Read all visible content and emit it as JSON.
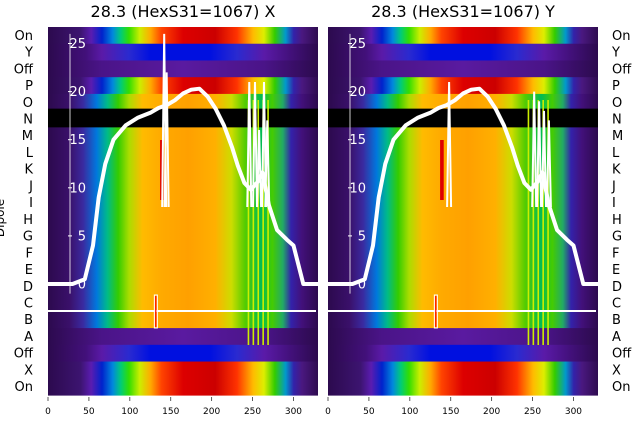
{
  "chart_data": [
    {
      "type": "heatmap",
      "title": "28.3 (HexS31=1067) X",
      "ylabel": "Dipole",
      "y_rows_top_to_bottom": [
        "On",
        "Y",
        "Off",
        "P",
        "O",
        "N",
        "M",
        "L",
        "K",
        "J",
        "I",
        "H",
        "G",
        "F",
        "E",
        "D",
        "C",
        "B",
        "A",
        "Off",
        "X",
        "On"
      ],
      "x_ticks": [
        0,
        50,
        100,
        150,
        200,
        250,
        300
      ],
      "xlim": [
        0,
        330
      ],
      "overlay_ticks": [
        25,
        20,
        15,
        10,
        5,
        0
      ],
      "overlay_line": {
        "x": [
          0,
          30,
          45,
          55,
          62,
          70,
          80,
          95,
          110,
          125,
          135,
          145,
          155,
          165,
          175,
          185,
          195,
          205,
          215,
          225,
          232,
          240,
          248,
          256,
          262,
          270,
          280,
          292,
          300,
          312,
          330
        ],
        "y": [
          0,
          0,
          0.5,
          4,
          9,
          12.5,
          15,
          16.5,
          17.3,
          17.8,
          18.3,
          18.6,
          19.1,
          19.8,
          20.2,
          20.3,
          19.5,
          18.2,
          16.5,
          14.2,
          12.3,
          10.5,
          9.8,
          10.6,
          11.6,
          8.2,
          5.6,
          4.6,
          4,
          0,
          0
        ]
      },
      "overlay_spikes": [
        {
          "x": 142,
          "y": 26
        },
        {
          "x": 145,
          "y": 22
        },
        {
          "x": 246,
          "y": 21
        },
        {
          "x": 253,
          "y": 21
        },
        {
          "x": 258,
          "y": 16
        },
        {
          "x": 264,
          "y": 21
        },
        {
          "x": 268,
          "y": 17
        }
      ]
    },
    {
      "type": "heatmap",
      "title": "28.3 (HexS31=1067) Y",
      "y_rows_top_to_bottom": [
        "On",
        "Y",
        "Off",
        "P",
        "O",
        "N",
        "M",
        "L",
        "K",
        "J",
        "I",
        "H",
        "G",
        "F",
        "E",
        "D",
        "C",
        "B",
        "A",
        "Off",
        "X",
        "On"
      ],
      "x_ticks": [
        0,
        50,
        100,
        150,
        200,
        250,
        300
      ],
      "xlim": [
        0,
        330
      ],
      "overlay_ticks": [
        25,
        20,
        15,
        10,
        5,
        0
      ],
      "overlay_line": {
        "x": [
          0,
          30,
          45,
          55,
          62,
          70,
          80,
          95,
          110,
          125,
          135,
          145,
          155,
          165,
          175,
          185,
          195,
          205,
          215,
          225,
          232,
          240,
          248,
          256,
          262,
          270,
          280,
          292,
          300,
          312,
          330
        ],
        "y": [
          0,
          0,
          0.5,
          4,
          9,
          12.5,
          15,
          16.5,
          17.3,
          17.8,
          18.3,
          18.6,
          19.1,
          19.8,
          20.2,
          20.3,
          19.5,
          18.2,
          16.5,
          14.2,
          12.3,
          10.5,
          9.8,
          10.6,
          11.6,
          8.2,
          5.6,
          4.6,
          4,
          0,
          0
        ]
      },
      "overlay_spikes": [
        {
          "x": 148,
          "y": 21
        },
        {
          "x": 252,
          "y": 20
        },
        {
          "x": 258,
          "y": 19
        },
        {
          "x": 264,
          "y": 18
        },
        {
          "x": 270,
          "y": 17
        }
      ]
    }
  ]
}
